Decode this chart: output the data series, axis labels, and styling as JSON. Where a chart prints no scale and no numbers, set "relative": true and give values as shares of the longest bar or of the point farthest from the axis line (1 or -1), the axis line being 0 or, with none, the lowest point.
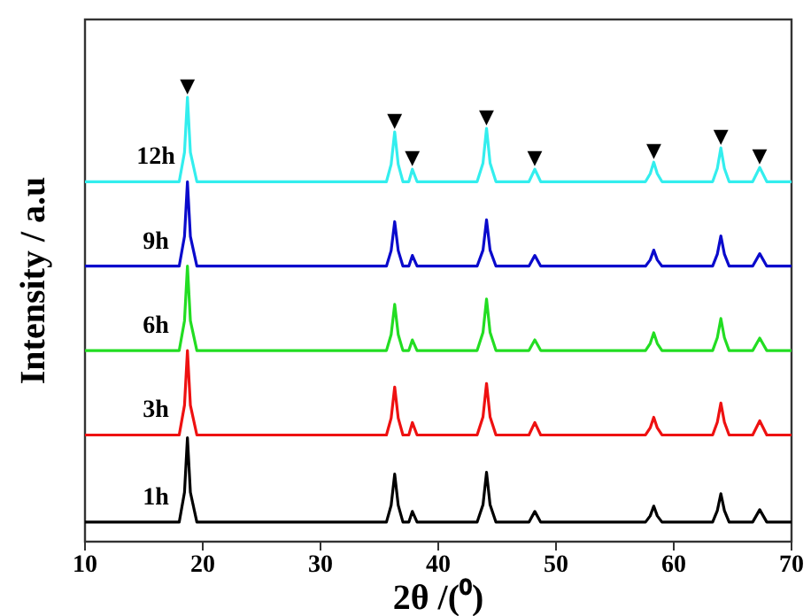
{
  "chart_data": {
    "type": "line",
    "xlabel": "2θ /(⁰)",
    "ylabel": "Intensity / a.u",
    "relative": true,
    "marker": "none",
    "line_style": "solid",
    "x": [
      10,
      18.0,
      18.45,
      18.7,
      18.95,
      19.5,
      35.6,
      36.0,
      36.3,
      36.6,
      37.0,
      37.5,
      37.8,
      38.2,
      43.3,
      43.8,
      44.1,
      44.4,
      44.9,
      47.7,
      48.2,
      48.7,
      57.6,
      58.0,
      58.3,
      58.6,
      59.0,
      63.3,
      63.7,
      64.0,
      64.3,
      64.7,
      66.7,
      67.3,
      67.9,
      70
    ],
    "xlim": [
      10,
      70
    ],
    "xticks": [
      10,
      20,
      30,
      40,
      50,
      60,
      70
    ],
    "series": [
      {
        "name": "12h",
        "color": "#33eeee",
        "values": [
          0.81,
          0.81,
          0.876,
          1.0,
          0.876,
          0.81,
          0.81,
          0.849,
          0.922,
          0.849,
          0.81,
          0.81,
          0.838,
          0.81,
          0.81,
          0.852,
          0.93,
          0.852,
          0.81,
          0.81,
          0.838,
          0.81,
          0.81,
          0.828,
          0.854,
          0.828,
          0.81,
          0.81,
          0.84,
          0.886,
          0.84,
          0.81,
          0.81,
          0.842,
          0.81,
          0.81
        ]
      },
      {
        "name": "9h",
        "color": "#0a0acc",
        "values": [
          0.62,
          0.62,
          0.687,
          0.81,
          0.687,
          0.62,
          0.62,
          0.655,
          0.72,
          0.655,
          0.62,
          0.62,
          0.644,
          0.62,
          0.62,
          0.656,
          0.724,
          0.656,
          0.62,
          0.62,
          0.644,
          0.62,
          0.62,
          0.634,
          0.656,
          0.634,
          0.62,
          0.62,
          0.647,
          0.688,
          0.647,
          0.62,
          0.62,
          0.648,
          0.62,
          0.62
        ]
      },
      {
        "name": "6h",
        "color": "#22dd22",
        "values": [
          0.43,
          0.43,
          0.497,
          0.62,
          0.497,
          0.43,
          0.43,
          0.466,
          0.534,
          0.466,
          0.43,
          0.43,
          0.454,
          0.43,
          0.43,
          0.471,
          0.546,
          0.471,
          0.43,
          0.43,
          0.454,
          0.43,
          0.43,
          0.446,
          0.47,
          0.446,
          0.43,
          0.43,
          0.459,
          0.502,
          0.459,
          0.43,
          0.43,
          0.458,
          0.43,
          0.43
        ]
      },
      {
        "name": "3h",
        "color": "#ee1111",
        "values": [
          0.24,
          0.24,
          0.307,
          0.43,
          0.307,
          0.24,
          0.24,
          0.278,
          0.348,
          0.278,
          0.24,
          0.24,
          0.268,
          0.24,
          0.24,
          0.281,
          0.356,
          0.281,
          0.24,
          0.24,
          0.268,
          0.24,
          0.24,
          0.256,
          0.28,
          0.256,
          0.24,
          0.24,
          0.269,
          0.312,
          0.269,
          0.24,
          0.24,
          0.272,
          0.24,
          0.24
        ]
      },
      {
        "name": "1h",
        "color": "#000000",
        "values": [
          0.044,
          0.044,
          0.111,
          0.234,
          0.111,
          0.044,
          0.044,
          0.082,
          0.152,
          0.082,
          0.044,
          0.044,
          0.068,
          0.044,
          0.044,
          0.083,
          0.156,
          0.083,
          0.044,
          0.044,
          0.068,
          0.044,
          0.044,
          0.058,
          0.08,
          0.058,
          0.044,
          0.044,
          0.07,
          0.108,
          0.07,
          0.044,
          0.044,
          0.072,
          0.044,
          0.044
        ]
      }
    ],
    "annotations": [
      {
        "text": "▼",
        "x": 18.7,
        "y": 1.0
      },
      {
        "text": "▼",
        "x": 36.3,
        "y": 0.922
      },
      {
        "text": "▼",
        "x": 37.8,
        "y": 0.838
      },
      {
        "text": "▼",
        "x": 44.1,
        "y": 0.93
      },
      {
        "text": "▼",
        "x": 48.2,
        "y": 0.838
      },
      {
        "text": "▼",
        "x": 58.3,
        "y": 0.854
      },
      {
        "text": "▼",
        "x": 64.0,
        "y": 0.886
      },
      {
        "text": "▼",
        "x": 67.3,
        "y": 0.842
      }
    ]
  }
}
